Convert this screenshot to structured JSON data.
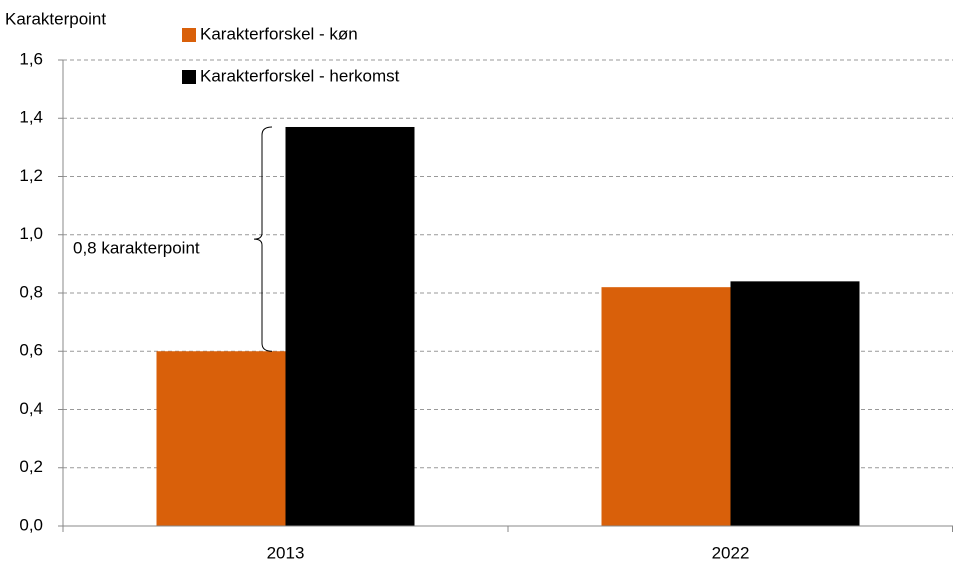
{
  "chart_data": {
    "type": "bar",
    "y_label": "Karakterpoint",
    "categories": [
      "2013",
      "2022"
    ],
    "series": [
      {
        "name": "Karakterforskel - køn",
        "color": "#d9600a",
        "values": [
          0.6,
          0.82
        ]
      },
      {
        "name": "Karakterforskel - herkomst",
        "color": "#000000",
        "values": [
          1.37,
          0.84
        ]
      }
    ],
    "annotation": "0,8 karakterpoint",
    "ylim": [
      0,
      1.6
    ],
    "yticks": [
      {
        "value": 0,
        "label": "0,0"
      },
      {
        "value": 0.2,
        "label": "0,2"
      },
      {
        "value": 0.4,
        "label": "0,4"
      },
      {
        "value": 0.6,
        "label": "0,6"
      },
      {
        "value": 0.8,
        "label": "0,8"
      },
      {
        "value": 1.0,
        "label": "1,0"
      },
      {
        "value": 1.2,
        "label": "1,2"
      },
      {
        "value": 1.4,
        "label": "1,4"
      },
      {
        "value": 1.6,
        "label": "1,6"
      }
    ],
    "grid": true
  }
}
